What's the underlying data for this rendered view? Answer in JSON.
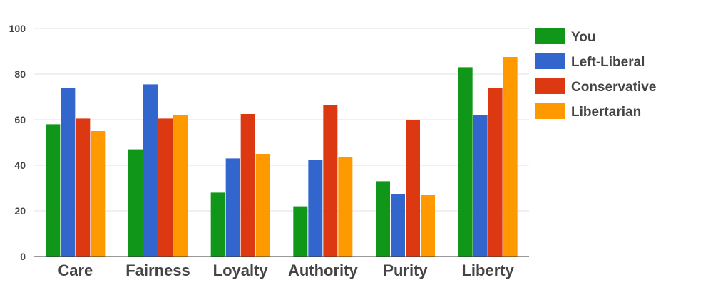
{
  "chart_data": {
    "type": "bar",
    "title": "",
    "xlabel": "",
    "ylabel": "",
    "categories": [
      "Care",
      "Fairness",
      "Loyalty",
      "Authority",
      "Purity",
      "Liberty"
    ],
    "series": [
      {
        "name": "You",
        "color": "#109618",
        "values": [
          58,
          47,
          28,
          22,
          33,
          83
        ]
      },
      {
        "name": "Left-Liberal",
        "color": "#3366cc",
        "values": [
          74,
          75.5,
          43,
          42.5,
          27.5,
          62
        ]
      },
      {
        "name": "Conservative",
        "color": "#dc3912",
        "values": [
          60.5,
          60.5,
          62.5,
          66.5,
          60,
          74
        ]
      },
      {
        "name": "Libertarian",
        "color": "#ff9900",
        "values": [
          55,
          62,
          45,
          43.5,
          27,
          87.5
        ]
      }
    ],
    "ylim": [
      0,
      100
    ],
    "yticks": [
      0,
      20,
      40,
      60,
      80,
      100
    ],
    "grid": true,
    "legend_position": "right"
  }
}
